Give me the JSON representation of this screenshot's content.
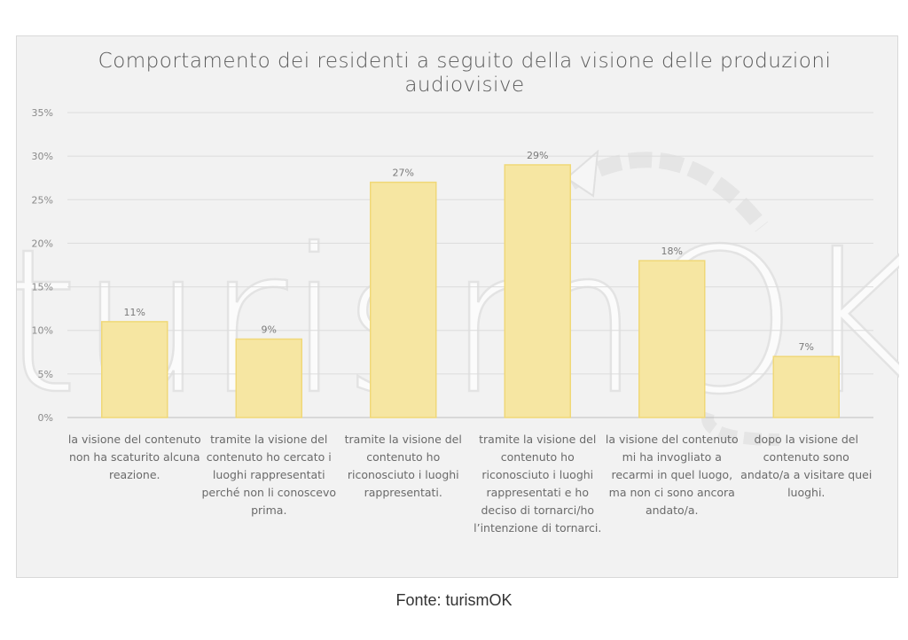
{
  "chart_data": {
    "type": "bar",
    "title_lines": [
      "Comportamento dei  residenti a seguito della visione delle produzioni",
      "audiovisive"
    ],
    "categories": [
      [
        "la visione del contenuto",
        "non ha scaturito alcuna",
        "reazione."
      ],
      [
        "tramite la visione del",
        "contenuto ho cercato i",
        "luoghi rappresentati",
        "perché non li conoscevo",
        "prima."
      ],
      [
        "tramite la visione del",
        "contenuto ho",
        "riconosciuto i luoghi",
        "rappresentati."
      ],
      [
        "tramite la visione del",
        "contenuto ho",
        "riconosciuto i luoghi",
        "rappresentati e ho",
        "deciso di tornarci/ho",
        "l’intenzione di tornarci."
      ],
      [
        "la visione del contenuto",
        "mi ha invogliato a",
        "recarmi in quel luogo,",
        "ma non ci sono ancora",
        "andato/a."
      ],
      [
        "dopo la visione del",
        "contenuto sono",
        "andato/a a visitare quei",
        "luoghi."
      ]
    ],
    "values": [
      11,
      9,
      27,
      29,
      18,
      7
    ],
    "data_labels": [
      "11%",
      "9%",
      "27%",
      "29%",
      "18%",
      "7%"
    ],
    "yticks": [
      "0%",
      "5%",
      "10%",
      "15%",
      "20%",
      "25%",
      "30%",
      "35%"
    ],
    "ylim": [
      0,
      35
    ],
    "grid": true,
    "bar_fill": "#f6e6a2",
    "bar_stroke": "#f0d878",
    "watermark": "turismOK"
  },
  "source": "Fonte: turismOK"
}
